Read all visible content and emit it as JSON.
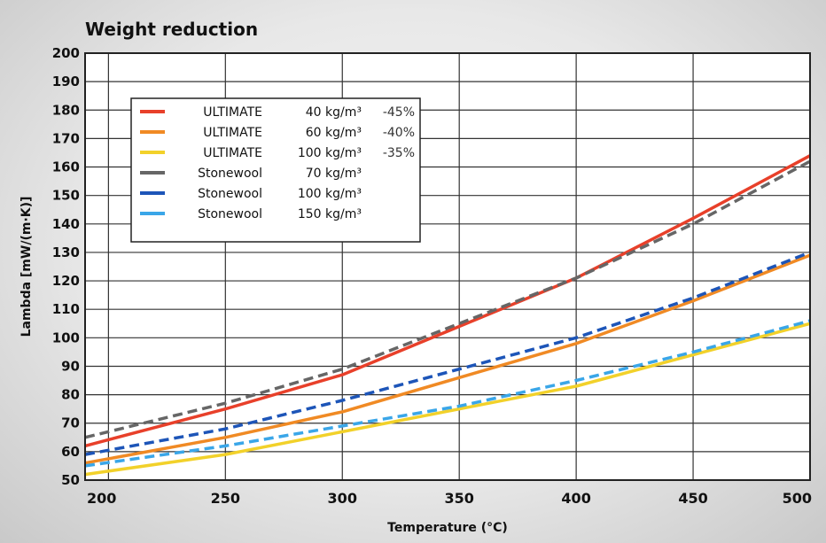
{
  "chart_data": {
    "type": "line",
    "title": "Weight reduction",
    "xlabel": "Temperature (°C)",
    "ylabel": "Lambda [mW/(m·K)]",
    "xlim": [
      190,
      500
    ],
    "ylim": [
      50,
      200
    ],
    "xticks": [
      200,
      250,
      300,
      350,
      400,
      450,
      500
    ],
    "yticks": [
      50,
      60,
      70,
      80,
      90,
      100,
      110,
      120,
      130,
      140,
      150,
      160,
      170,
      180,
      190,
      200
    ],
    "grid": true,
    "legend_position": "top-left",
    "x": [
      190,
      250,
      300,
      350,
      400,
      450,
      500
    ],
    "series": [
      {
        "name": "ULTIMATE",
        "density": "40 kg/m³",
        "reduction": "-45%",
        "color": "#e8402a",
        "dash": false,
        "values": [
          62,
          75,
          87,
          104,
          121,
          142,
          164
        ]
      },
      {
        "name": "ULTIMATE",
        "density": "60 kg/m³",
        "reduction": "-40%",
        "color": "#f08a24",
        "dash": false,
        "values": [
          56,
          65,
          74,
          86,
          98,
          113,
          129
        ]
      },
      {
        "name": "ULTIMATE",
        "density": "100 kg/m³",
        "reduction": "-35%",
        "color": "#f2d12a",
        "dash": false,
        "values": [
          52,
          59,
          67,
          75,
          83,
          94,
          105
        ]
      },
      {
        "name": "Stonewool",
        "density": "70 kg/m³",
        "reduction": "",
        "color": "#666666",
        "dash": true,
        "values": [
          65,
          77,
          89,
          105,
          121,
          140,
          162
        ]
      },
      {
        "name": "Stonewool",
        "density": "100 kg/m³",
        "reduction": "",
        "color": "#1d55b8",
        "dash": true,
        "values": [
          59,
          68,
          78,
          89,
          100,
          114,
          130
        ]
      },
      {
        "name": "Stonewool",
        "density": "150 kg/m³",
        "reduction": "",
        "color": "#3aa6e8",
        "dash": true,
        "values": [
          55,
          62,
          69,
          76,
          85,
          95,
          106
        ]
      }
    ]
  }
}
